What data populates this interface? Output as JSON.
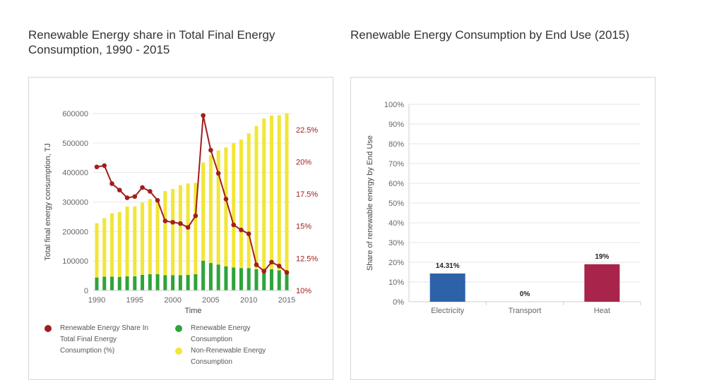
{
  "left_title": "Renewable Energy share in Total Final Energy Consumption, 1990 - 2015",
  "right_title": "Renewable Energy Consumption by End Use (2015)",
  "colors": {
    "renewable": "#2ea43a",
    "non_renewable": "#f2e637",
    "share_line": "#a11e1e",
    "electricity": "#2d62a8",
    "transport": "#8a8a8a",
    "heat": "#a8244a",
    "grid": "#e6e6e6",
    "axis_text": "#666666"
  },
  "chart_data": [
    {
      "type": "bar",
      "stacked": true,
      "title": "Renewable Energy share in Total Final Energy Consumption, 1990 - 2015",
      "xlabel": "Time",
      "ylabel": "Total final energy consumption, TJ",
      "ylim": [
        0,
        600000
      ],
      "y_ticks": [
        "0",
        "100000",
        "200000",
        "300000",
        "400000",
        "500000",
        "600000"
      ],
      "y2lim": [
        10,
        23.75
      ],
      "y2_ticks": [
        "10%",
        "12.5%",
        "15%",
        "17.5%",
        "20%",
        "22.5%"
      ],
      "x_ticks": [
        "1990",
        "1995",
        "2000",
        "2005",
        "2010",
        "2015"
      ],
      "grid": true,
      "legend_position": "bottom",
      "x": [
        1990,
        1991,
        1992,
        1993,
        1994,
        1995,
        1996,
        1997,
        1998,
        1999,
        2000,
        2001,
        2002,
        2003,
        2004,
        2005,
        2006,
        2007,
        2008,
        2009,
        2010,
        2011,
        2012,
        2013,
        2014,
        2015
      ],
      "series": [
        {
          "name": "Renewable Energy Consumption",
          "kind": "bar",
          "values": [
            44000,
            47000,
            47000,
            46000,
            48000,
            48000,
            53000,
            55000,
            55000,
            52000,
            52000,
            52000,
            53000,
            55000,
            101000,
            93000,
            88000,
            82000,
            78000,
            76000,
            76000,
            72000,
            65000,
            72000,
            68000,
            62000
          ]
        },
        {
          "name": "Non-Renewable Energy Consumption",
          "kind": "bar",
          "values": [
            184000,
            198000,
            215000,
            220000,
            237000,
            237000,
            245000,
            255000,
            246000,
            285000,
            292000,
            305000,
            310000,
            310000,
            333000,
            365000,
            387000,
            403000,
            422000,
            436000,
            457000,
            486000,
            518000,
            521000,
            526000,
            539000
          ]
        },
        {
          "name": "Renewable Energy Share In Total Final Energy Consumption (%)",
          "kind": "line",
          "axis": "y2",
          "values": [
            19.6,
            19.7,
            18.3,
            17.8,
            17.2,
            17.3,
            18.0,
            17.7,
            17.0,
            15.4,
            15.3,
            15.2,
            14.9,
            15.8,
            23.6,
            20.9,
            19.1,
            17.1,
            15.1,
            14.7,
            14.4,
            12.0,
            11.5,
            12.2,
            11.9,
            11.4
          ]
        }
      ]
    },
    {
      "type": "bar",
      "title": "Renewable Energy Consumption by End Use (2015)",
      "xlabel": "",
      "ylabel": "Share of renewable energy by End Use",
      "ylim": [
        0,
        100
      ],
      "y_ticks": [
        "0%",
        "10%",
        "20%",
        "30%",
        "40%",
        "50%",
        "60%",
        "70%",
        "80%",
        "90%",
        "100%"
      ],
      "grid": true,
      "categories": [
        "Electricity",
        "Transport",
        "Heat"
      ],
      "values": [
        14.31,
        0,
        19
      ],
      "data_labels": [
        "14.31%",
        "0%",
        "19%"
      ]
    }
  ]
}
